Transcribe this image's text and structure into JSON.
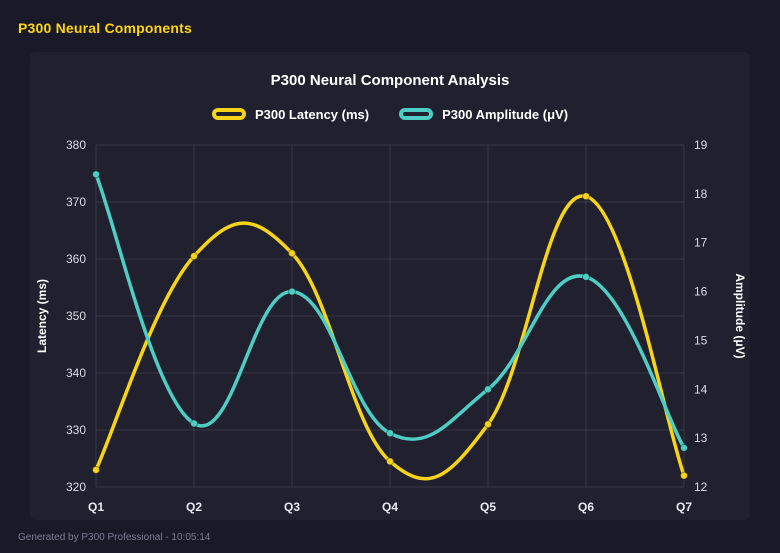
{
  "header": {
    "title": "P300 Neural Components"
  },
  "footer": {
    "text": "Generated by P300 Professional - 10:05:14"
  },
  "chart_data": {
    "type": "line",
    "title": "P300 Neural Component Analysis",
    "categories": [
      "Q1",
      "Q2",
      "Q3",
      "Q4",
      "Q5",
      "Q6",
      "Q7"
    ],
    "series": [
      {
        "name": "P300 Latency (ms)",
        "axis": "left",
        "color": "#f7d417",
        "values": [
          323,
          360.5,
          361,
          324.5,
          331,
          371,
          322
        ]
      },
      {
        "name": "P300 Amplitude (μV)",
        "axis": "right",
        "color": "#4ecdc4",
        "values": [
          18.4,
          13.3,
          16.0,
          13.1,
          14.0,
          16.3,
          12.8
        ]
      }
    ],
    "left_axis": {
      "label": "Latency (ms)",
      "min": 320,
      "max": 380,
      "step": 10
    },
    "right_axis": {
      "label": "Amplitude (μV)",
      "min": 12,
      "max": 19,
      "step": 1
    },
    "grid": true,
    "smooth": true,
    "legend_position": "top"
  },
  "colors": {
    "accent_yellow": "#ffd60a",
    "grid": "rgba(255,255,255,0.10)",
    "tick_text": "#dcdce6"
  }
}
